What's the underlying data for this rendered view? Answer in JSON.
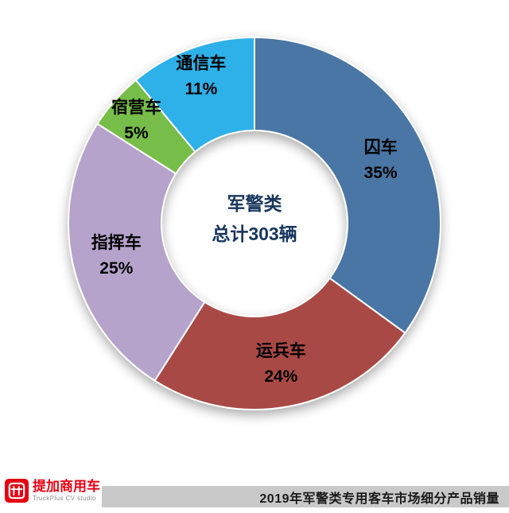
{
  "chart_data": {
    "type": "pie",
    "subtype": "donut",
    "title": "2019年军警类专用客车市场细分产品销量",
    "categories": [
      "囚车",
      "运兵车",
      "指挥车",
      "宿营车",
      "通信车"
    ],
    "values": [
      35,
      24,
      25,
      5,
      11
    ],
    "unit": "%",
    "total_units": 303,
    "center_label": {
      "line1": "军警类",
      "line2": "总计303辆"
    },
    "segments": [
      {
        "label": "囚车",
        "pct_label": "35%",
        "value": 35,
        "color": "#4a76a4"
      },
      {
        "label": "运兵车",
        "pct_label": "24%",
        "value": 24,
        "color": "#a94a44"
      },
      {
        "label": "指挥车",
        "pct_label": "25%",
        "value": 25,
        "color": "#b5a3cb"
      },
      {
        "label": "宿营车",
        "pct_label": "5%",
        "value": 5,
        "color": "#77bd4a"
      },
      {
        "label": "通信车",
        "pct_label": "11%",
        "value": 11,
        "color": "#2fb0e8"
      }
    ],
    "legend_position": "labels-on-slices",
    "start_angle_deg": 0,
    "direction": "clockwise",
    "center_text_color": "#17365d",
    "label_color": "#000000"
  },
  "footer": {
    "title": "2019年军警类专用客车市场细分产品销量",
    "bar_color": "#c9c9c9"
  },
  "branding": {
    "name": "提加商用车",
    "subtitle": "TruckPlus CV studio",
    "brand_color": "#e60012"
  }
}
